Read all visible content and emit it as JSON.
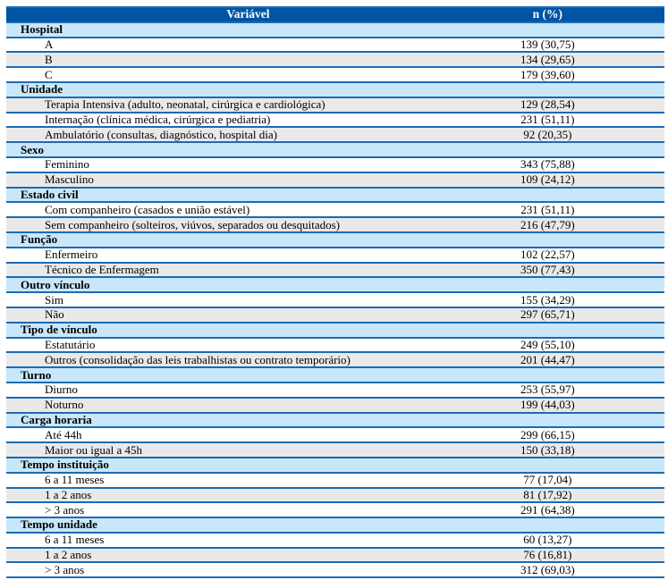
{
  "colors": {
    "header_bg": "#0054A4",
    "header_text": "#FFFFFF",
    "section_bg": "#C9E7FA",
    "shaded_row_bg": "#E9E9E9",
    "border": "#1B6BB2",
    "text": "#000000"
  },
  "table": {
    "header": {
      "variable_col": "Variável",
      "value_col": "n (%)"
    },
    "sections": [
      {
        "label": "Hospital",
        "rows": [
          {
            "label": "A",
            "value": "139 (30,75)",
            "shaded": false
          },
          {
            "label": "B",
            "value": "134 (29,65)",
            "shaded": true
          },
          {
            "label": "C",
            "value": "179 (39,60)",
            "shaded": false
          }
        ]
      },
      {
        "label": "Unidade",
        "rows": [
          {
            "label": "Terapia Intensiva (adulto, neonatal, cirúrgica e cardiológica)",
            "value": "129 (28,54)",
            "shaded": true
          },
          {
            "label": "Internação (clínica médica, cirúrgica e pediatria)",
            "value": "231 (51,11)",
            "shaded": false
          },
          {
            "label": "Ambulatório (consultas, diagnóstico, hospital dia)",
            "value": "92 (20,35)",
            "shaded": true
          }
        ]
      },
      {
        "label": "Sexo",
        "rows": [
          {
            "label": "Feminino",
            "value": "343 (75,88)",
            "shaded": false
          },
          {
            "label": "Masculino",
            "value": "109 (24,12)",
            "shaded": true
          }
        ]
      },
      {
        "label": "Estado civil",
        "rows": [
          {
            "label": "Com companheiro (casados e união estável)",
            "value": "231 (51,11)",
            "shaded": false
          },
          {
            "label": "Sem companheiro (solteiros, viúvos, separados ou desquitados)",
            "value": "216 (47,79)",
            "shaded": true
          }
        ]
      },
      {
        "label": "Função",
        "rows": [
          {
            "label": "Enfermeiro",
            "value": "102 (22,57)",
            "shaded": false
          },
          {
            "label": "Técnico de Enfermagem",
            "value": "350 (77,43)",
            "shaded": true
          }
        ]
      },
      {
        "label": "Outro vínculo",
        "rows": [
          {
            "label": "Sim",
            "value": "155 (34,29)",
            "shaded": false
          },
          {
            "label": "Não",
            "value": "297 (65,71)",
            "shaded": true
          }
        ]
      },
      {
        "label": "Tipo de vínculo",
        "rows": [
          {
            "label": "Estatutário",
            "value": "249 (55,10)",
            "shaded": false
          },
          {
            "label": "Outros (consolidação das leis trabalhistas ou contrato temporário)",
            "value": "201 (44,47)",
            "shaded": true
          }
        ]
      },
      {
        "label": "Turno",
        "rows": [
          {
            "label": "Diurno",
            "value": "253 (55,97)",
            "shaded": false
          },
          {
            "label": "Noturno",
            "value": "199 (44,03)",
            "shaded": true
          }
        ]
      },
      {
        "label": "Carga horaria",
        "rows": [
          {
            "label": "Até 44h",
            "value": "299 (66,15)",
            "shaded": false
          },
          {
            "label": "Maior ou igual a 45h",
            "value": "150 (33,18)",
            "shaded": true
          }
        ]
      },
      {
        "label": "Tempo instituição",
        "rows": [
          {
            "label": "6 a 11 meses",
            "value": "77 (17,04)",
            "shaded": false
          },
          {
            "label": "1 a 2 anos",
            "value": "81 (17,92)",
            "shaded": true
          },
          {
            "label": "> 3 anos",
            "value": "291 (64,38)",
            "shaded": false
          }
        ]
      },
      {
        "label": "Tempo unidade",
        "rows": [
          {
            "label": "6 a 11 meses",
            "value": "60 (13,27)",
            "shaded": false
          },
          {
            "label": "1 a 2 anos",
            "value": "76 (16,81)",
            "shaded": true
          },
          {
            "label": "> 3 anos",
            "value": "312 (69,03)",
            "shaded": false
          }
        ]
      }
    ]
  }
}
